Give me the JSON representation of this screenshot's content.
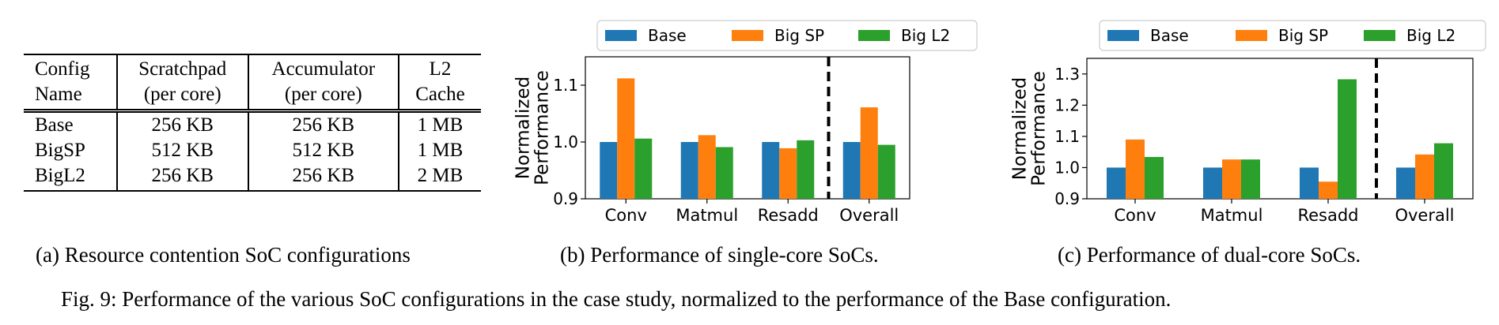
{
  "table": {
    "headers": [
      [
        "Config",
        "Name"
      ],
      [
        "Scratchpad",
        "(per core)"
      ],
      [
        "Accumulator",
        "(per core)"
      ],
      [
        "L2",
        "Cache"
      ]
    ],
    "rows": [
      [
        "Base",
        "256 KB",
        "256 KB",
        "1 MB"
      ],
      [
        "BigSP",
        "512 KB",
        "512 KB",
        "1 MB"
      ],
      [
        "BigL2",
        "256 KB",
        "256 KB",
        "2 MB"
      ]
    ]
  },
  "captions": {
    "a": "(a) Resource contention SoC configurations",
    "b": "(b) Performance of single-core SoCs.",
    "c": "(c) Performance of dual-core SoCs.",
    "figure": "Fig. 9: Performance of the various SoC configurations in the case study, normalized to the performance of the Base configuration."
  },
  "colors": {
    "Base": "#1f77b4",
    "Big SP": "#ff7f0e",
    "Big L2": "#2ca02c"
  },
  "chart_data": [
    {
      "type": "bar",
      "categories": [
        "Conv",
        "Matmul",
        "Resadd",
        "Overall"
      ],
      "series": [
        {
          "name": "Base",
          "values": [
            1.0,
            1.0,
            1.0,
            1.0
          ]
        },
        {
          "name": "Big SP",
          "values": [
            1.112,
            1.012,
            0.989,
            1.061
          ]
        },
        {
          "name": "Big L2",
          "values": [
            1.006,
            0.991,
            1.003,
            0.995
          ]
        }
      ],
      "ylabel": "Normalized Performance",
      "ylim": [
        0.9,
        1.15
      ],
      "yticks": [
        0.9,
        1.0,
        1.1
      ],
      "ytick_labels": [
        "0.9",
        "1.0",
        "1.1"
      ],
      "divider_after": "Resadd",
      "legend": "top"
    },
    {
      "type": "bar",
      "categories": [
        "Conv",
        "Matmul",
        "Resadd",
        "Overall"
      ],
      "series": [
        {
          "name": "Base",
          "values": [
            1.0,
            1.0,
            1.0,
            1.0
          ]
        },
        {
          "name": "Big SP",
          "values": [
            1.09,
            1.026,
            0.955,
            1.042
          ]
        },
        {
          "name": "Big L2",
          "values": [
            1.034,
            1.026,
            1.283,
            1.078
          ]
        }
      ],
      "ylabel": "Normalized Performance",
      "ylim": [
        0.9,
        1.35
      ],
      "yticks": [
        0.9,
        1.0,
        1.1,
        1.2,
        1.3
      ],
      "ytick_labels": [
        "0.9",
        "1.0",
        "1.1",
        "1.2",
        "1.3"
      ],
      "divider_after": "Resadd",
      "legend": "top"
    }
  ]
}
